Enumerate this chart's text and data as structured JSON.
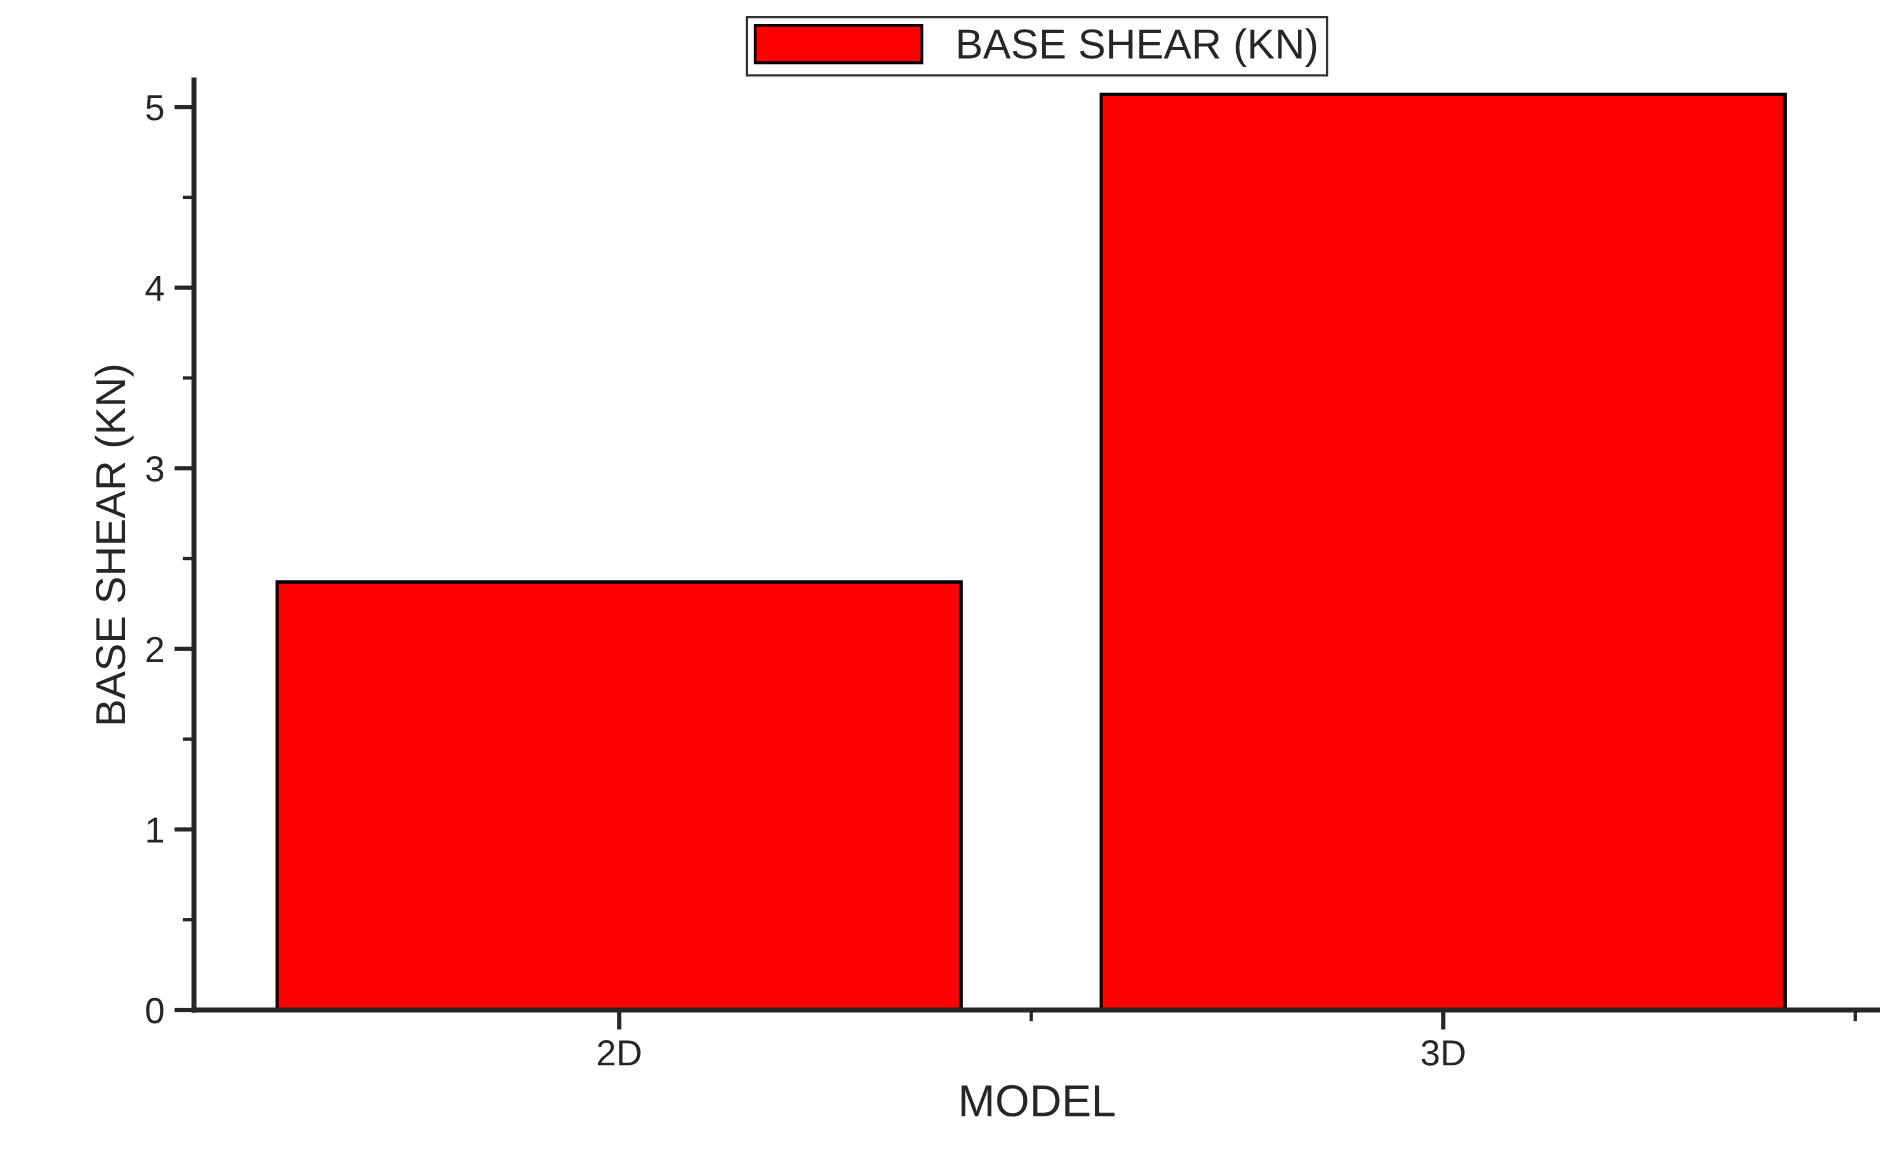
{
  "chart_data": {
    "type": "bar",
    "xlabel": "MODEL",
    "ylabel": "BASE SHEAR (KN)",
    "categories": [
      "2D",
      "3D"
    ],
    "series": [
      {
        "name": "BASE SHEAR (KN)",
        "color": "#ff0000",
        "values": [
          2.37,
          5.07
        ]
      }
    ],
    "ylim": [
      0,
      5.15
    ],
    "yticks": [
      0,
      1,
      2,
      3,
      4,
      5
    ],
    "grid": false,
    "legend": "top"
  }
}
